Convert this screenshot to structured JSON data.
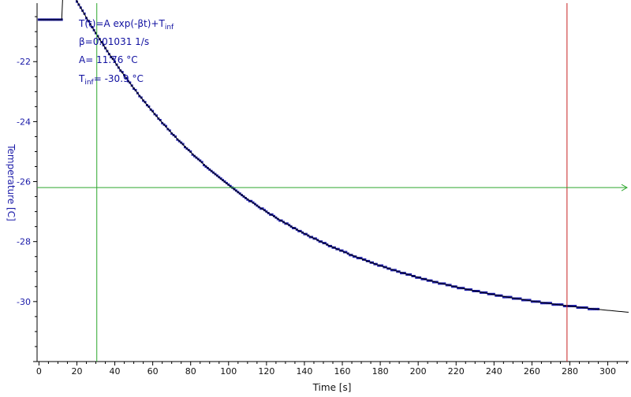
{
  "chart_data": {
    "type": "scatter",
    "title": "",
    "xlabel": "Time [s]",
    "ylabel": "Temperature [C]",
    "xlim": [
      -1,
      311
    ],
    "ylim": [
      -32.0,
      -20.05
    ],
    "x_ticks": [
      0,
      20,
      40,
      60,
      80,
      100,
      120,
      140,
      160,
      180,
      200,
      220,
      240,
      260,
      280,
      300
    ],
    "y_ticks": [
      -22,
      -24,
      -26,
      -28,
      -30
    ],
    "y_tick_labels": [
      "-22",
      "-24",
      "-26",
      "-28",
      "-30"
    ],
    "grid": false,
    "fit_model": {
      "beta": 0.01031,
      "A": 11.76,
      "T_inf": -30.9,
      "t0": 12.8,
      "plateau": -20.6
    },
    "fit_annotation": {
      "formula": "T(t)=A exp(-βt)+T",
      "formula_sub": "inf",
      "beta_line": "β=0.01031 1/s",
      "a_line": "A= 11.76 °C",
      "tinf_prefix": "T",
      "tinf_sub": "inf",
      "tinf_value": "= -30.9 °C"
    },
    "series": [
      {
        "marker": "square",
        "t_start": 0,
        "t_end": 295,
        "color": "#1a1aa8"
      },
      {
        "style": "line",
        "t_start": 0,
        "t_end": 311,
        "color": "#000000"
      }
    ],
    "cursors": {
      "vertical_green": 30.5,
      "vertical_red": 278.5,
      "horizontal_green": -26.2
    },
    "colors": {
      "data": "#1a1aa8",
      "fit": "#000000",
      "cursor_green": "#2ea82e",
      "cursor_red": "#c82020",
      "axis_labels": "#1a1aa8"
    }
  }
}
